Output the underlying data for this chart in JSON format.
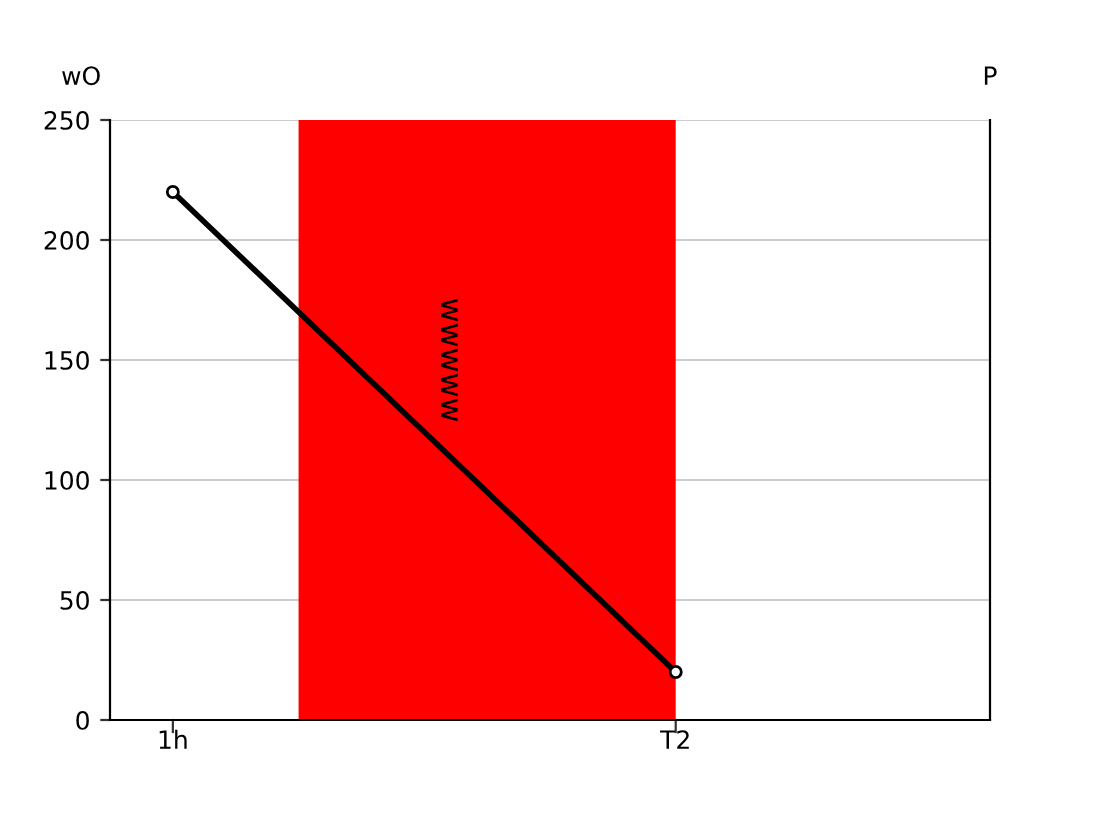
{
  "chart_data": {
    "type": "line",
    "ylabel": "wO",
    "y2label": "P",
    "categories": [
      "1h",
      null,
      null,
      null,
      "T2",
      null,
      null
    ],
    "series": [
      {
        "color": "#000000",
        "x": [
          "1h",
          "T2"
        ],
        "values": [
          220,
          20
        ]
      }
    ],
    "ylim": [
      0,
      250
    ],
    "yticks": [
      0,
      50,
      100,
      150,
      200,
      250
    ],
    "annotations": [
      "wwwww"
    ],
    "grid": "y",
    "marker": "circle",
    "line_style": "solid"
  }
}
